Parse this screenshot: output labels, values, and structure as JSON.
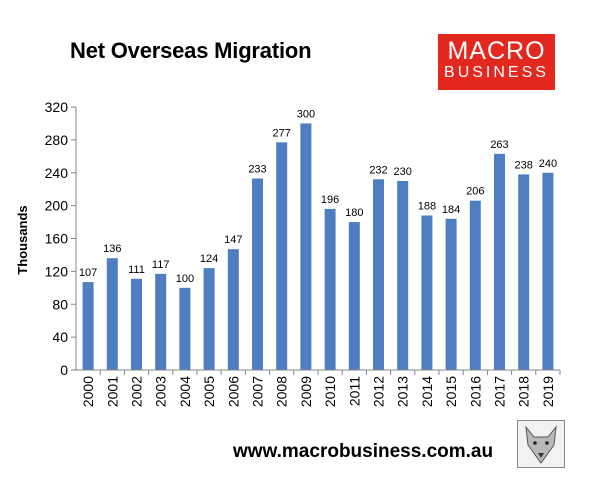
{
  "logo": {
    "line1": "MACRO",
    "line2": "BUSINESS"
  },
  "footer": {
    "url": "www.macrobusiness.com.au"
  },
  "colors": {
    "bar": "#4f7ec0",
    "brand": "#e3281f"
  },
  "chart_data": {
    "type": "bar",
    "title": "Net Overseas Migration",
    "xlabel": "",
    "ylabel": "Thousands",
    "ylim": [
      0,
      320
    ],
    "yticks": [
      0,
      40,
      80,
      120,
      160,
      200,
      240,
      280,
      320
    ],
    "grid": false,
    "legend": "none",
    "categories": [
      "2000",
      "2001",
      "2002",
      "2003",
      "2004",
      "2005",
      "2006",
      "2007",
      "2008",
      "2009",
      "2010",
      "2011",
      "2012",
      "2013",
      "2014",
      "2015",
      "2016",
      "2017",
      "2018",
      "2019"
    ],
    "values": [
      107,
      136,
      111,
      117,
      100,
      124,
      147,
      233,
      277,
      300,
      196,
      180,
      232,
      230,
      188,
      184,
      206,
      263,
      238,
      240
    ]
  }
}
